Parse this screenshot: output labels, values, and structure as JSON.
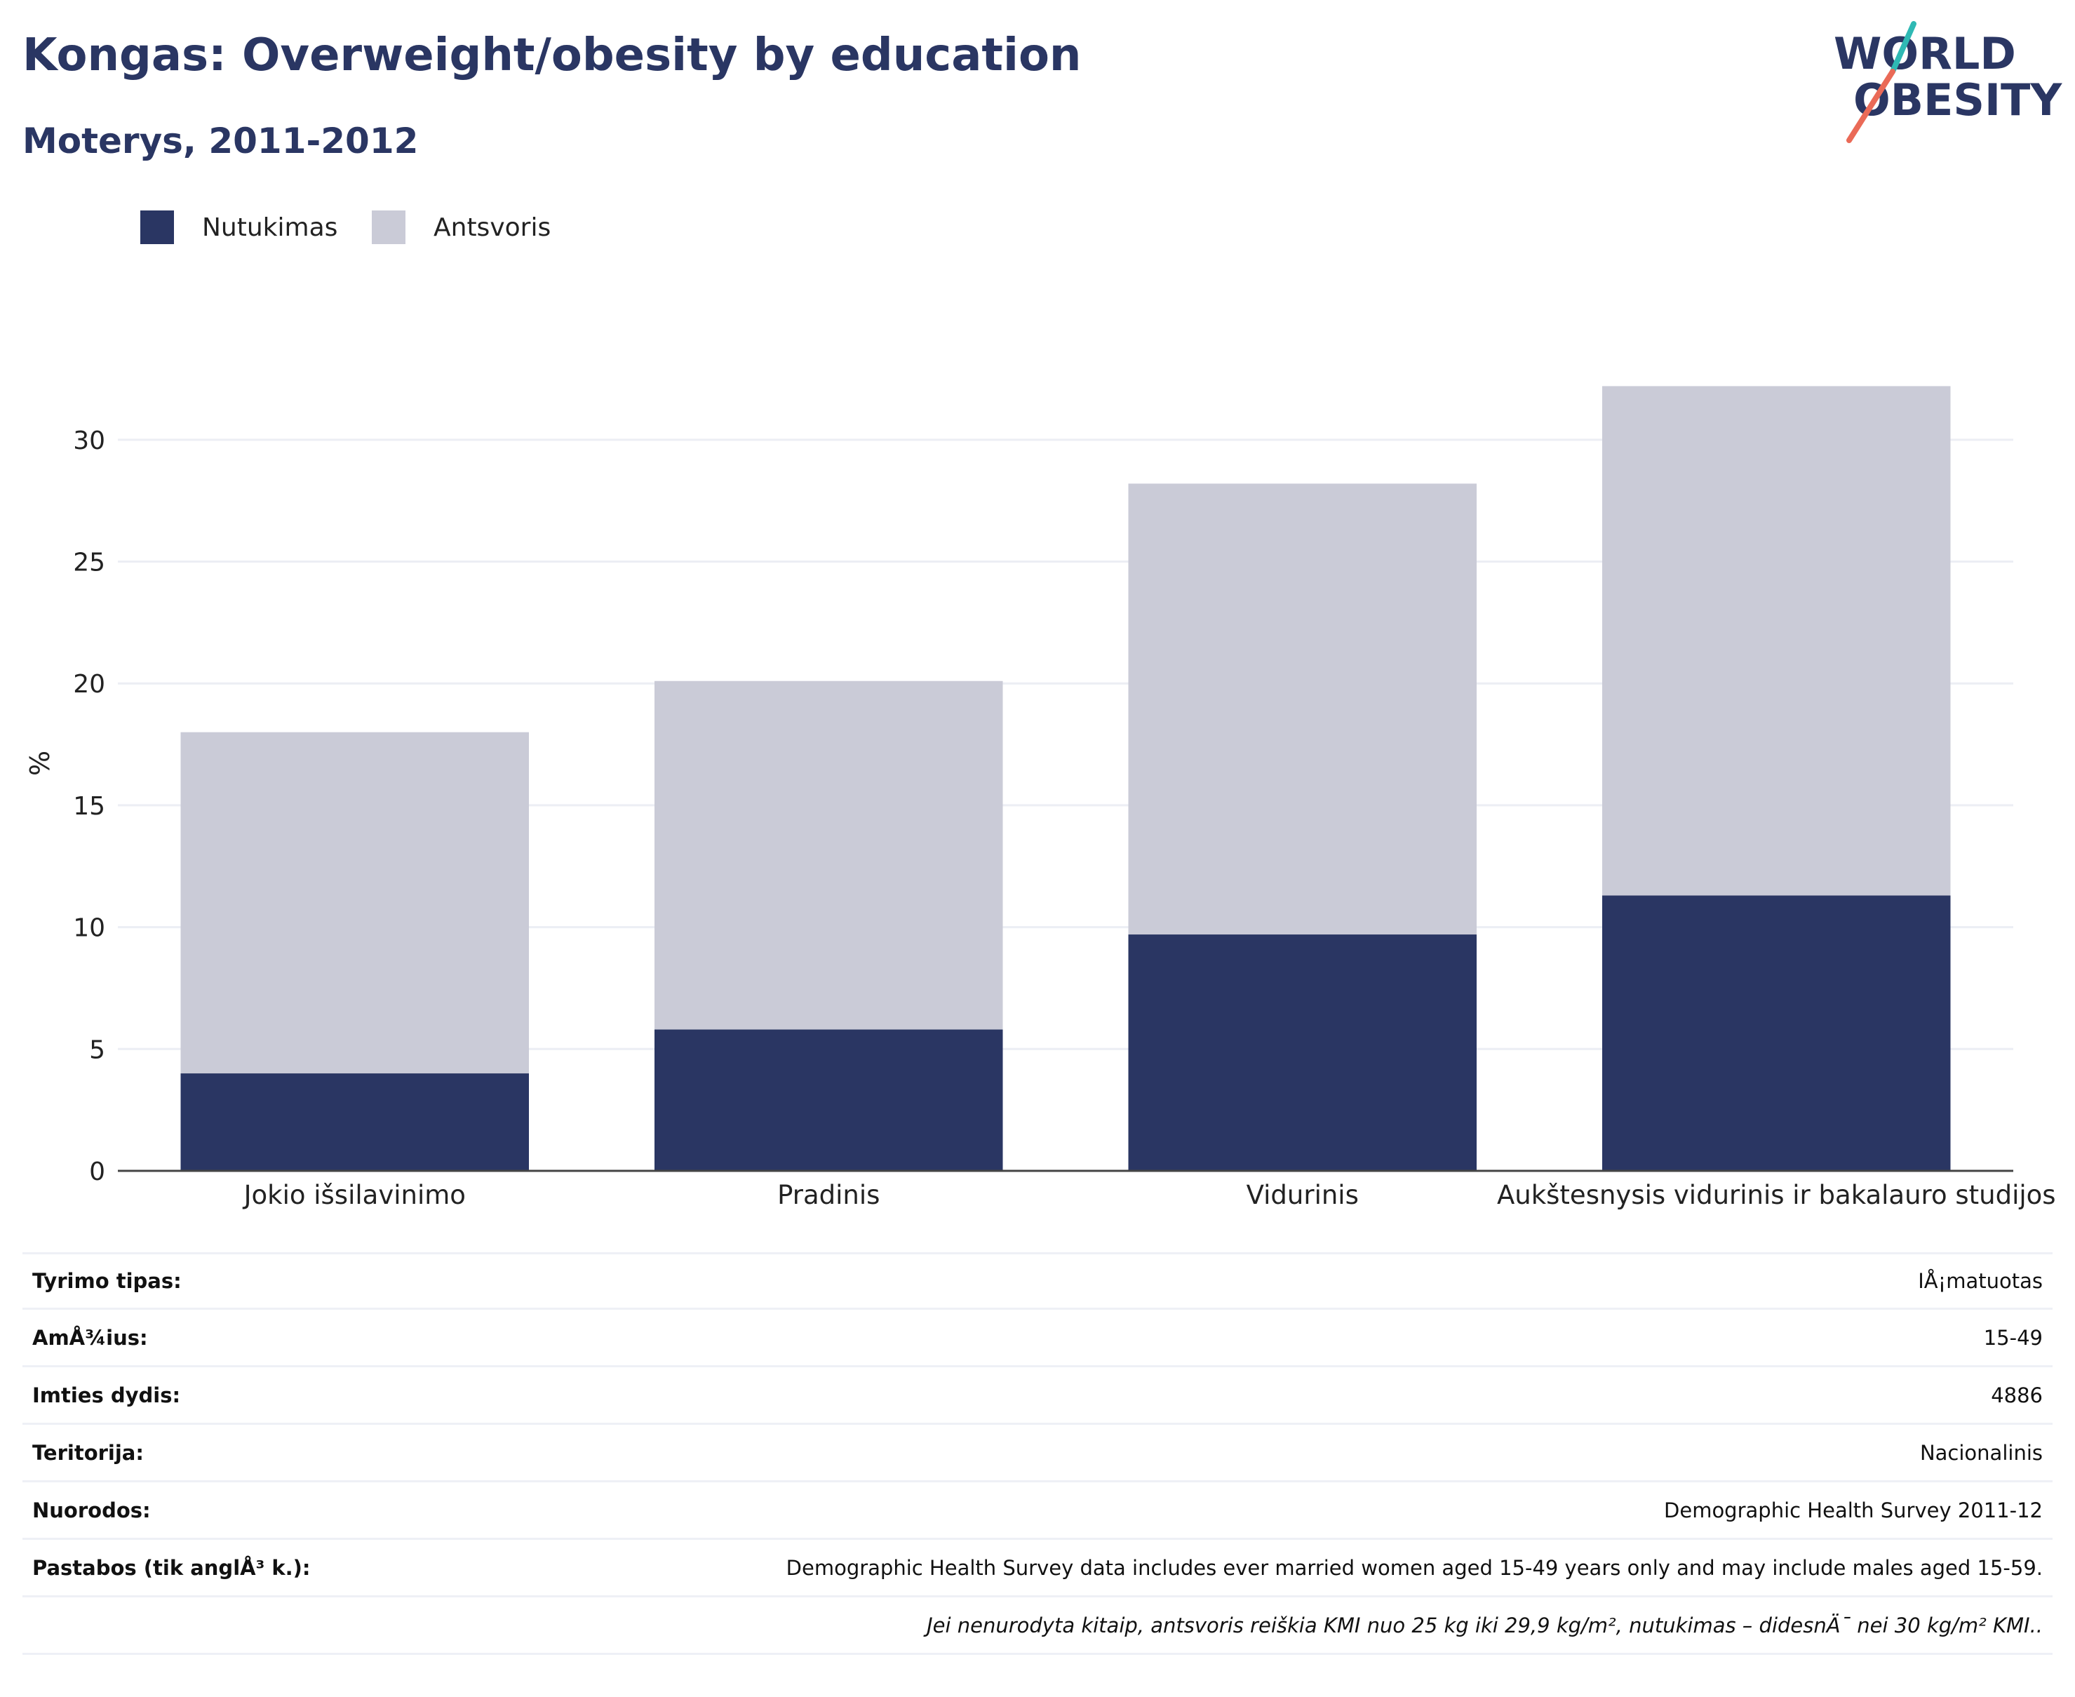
{
  "header": {
    "title": "Kongas: Overweight/obesity by education",
    "subtitle": "Moterys, 2011-2012"
  },
  "logo": {
    "line1": "WORLD",
    "line2": "OBESITY"
  },
  "colors": {
    "title": "#2a3663",
    "nutukimas": "#2a3663",
    "antsvoris": "#cacbd7",
    "grid": "#eceef4",
    "axis": "#444444",
    "logo_teal": "#2fb9b4",
    "logo_coral": "#ea6a57"
  },
  "legend": [
    {
      "label": "Nutukimas",
      "color": "#2a3663"
    },
    {
      "label": "Antsvoris",
      "color": "#cacbd7"
    }
  ],
  "chart_data": {
    "type": "bar",
    "stacked": true,
    "categories": [
      "Jokio išsilavinimo",
      "Pradinis",
      "Vidurinis",
      "Aukštesnysis vidurinis ir bakalauro studijos"
    ],
    "series": [
      {
        "name": "Nutukimas",
        "values": [
          4.0,
          5.8,
          9.7,
          11.3
        ]
      },
      {
        "name": "Antsvoris",
        "values": [
          14.0,
          14.3,
          18.5,
          20.9
        ]
      }
    ],
    "title": "Kongas: Overweight/obesity by education",
    "subtitle": "Moterys, 2011-2012",
    "xlabel": "",
    "ylabel": "%",
    "ylim": [
      0,
      32.5
    ],
    "yticks": [
      0,
      5,
      10,
      15,
      20,
      25,
      30
    ],
    "grid": true,
    "legend_position": "top-left"
  },
  "meta": [
    {
      "label": "Tyrimo tipas:",
      "value": "IÅ¡matuotas"
    },
    {
      "label": "AmÅ¾ius:",
      "value": "15-49"
    },
    {
      "label": "Imties dydis:",
      "value": "4886"
    },
    {
      "label": "Teritorija:",
      "value": "Nacionalinis"
    },
    {
      "label": "Nuorodos:",
      "value": "Demographic Health Survey 2011-12"
    },
    {
      "label": "Pastabos (tik anglÅ³ k.):",
      "value": "Demographic Health Survey data includes ever married women aged 15-49 years only and may include males aged 15-59."
    }
  ],
  "footnote": "Jei nenurodyta kitaip, antsvoris reiškia KMI nuo 25 kg iki 29,9 kg/m², nutukimas – didesnÄ¯ nei 30 kg/m² KMI.."
}
